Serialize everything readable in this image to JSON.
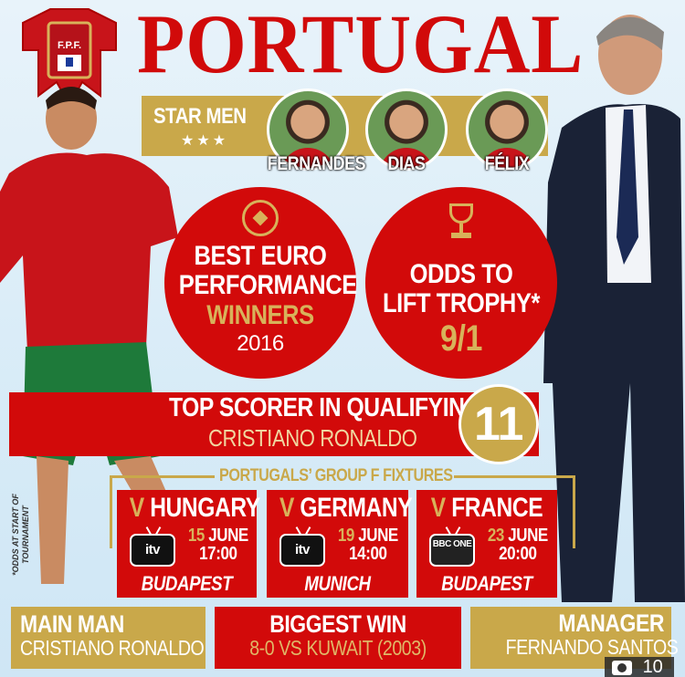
{
  "title": "PORTUGAL",
  "crest": {
    "text": "F.P.F."
  },
  "star_men": {
    "label": "STAR MEN",
    "stars": "★★★",
    "players": [
      "FERNANDES",
      "DIAS",
      "FÉLIX"
    ]
  },
  "best_euro": {
    "line1": "BEST EURO",
    "line2": "PERFORMANCE",
    "result": "WINNERS",
    "year": "2016",
    "icon": "football-icon"
  },
  "odds": {
    "line1": "ODDS TO",
    "line2": "LIFT TROPHY*",
    "value": "9/1",
    "icon": "trophy-icon"
  },
  "top_scorer": {
    "label": "TOP SCORER IN QUALIFYING",
    "name": "CRISTIANO RONALDO",
    "goals": "11"
  },
  "fixtures": {
    "label": "PORTUGALS’ GROUP F FIXTURES",
    "items": [
      {
        "v": "V",
        "opponent": "HUNGARY",
        "tv": "itv",
        "day": "15",
        "month": "JUNE",
        "time": "17:00",
        "city": "BUDAPEST"
      },
      {
        "v": "V",
        "opponent": "GERMANY",
        "tv": "itv",
        "day": "19",
        "month": "JUNE",
        "time": "14:00",
        "city": "MUNICH"
      },
      {
        "v": "V",
        "opponent": "FRANCE",
        "tv": "BBC ONE",
        "day": "23",
        "month": "JUNE",
        "time": "20:00",
        "city": "BUDAPEST"
      }
    ]
  },
  "footnote": "*ODDS AT START OF TOURNAMENT",
  "main_man": {
    "label": "MAIN MAN",
    "value": "CRISTIANO RONALDO"
  },
  "biggest_win": {
    "label": "BIGGEST WIN",
    "value": "8-0 VS KUWAIT (2003)"
  },
  "manager": {
    "label": "MANAGER",
    "value": "FERNANDO SANTOS"
  },
  "gallery": {
    "count": "10",
    "icon": "camera-icon"
  },
  "colors": {
    "red": "#d20a0a",
    "gold": "#c9a84a",
    "background": "#dfeef8"
  }
}
